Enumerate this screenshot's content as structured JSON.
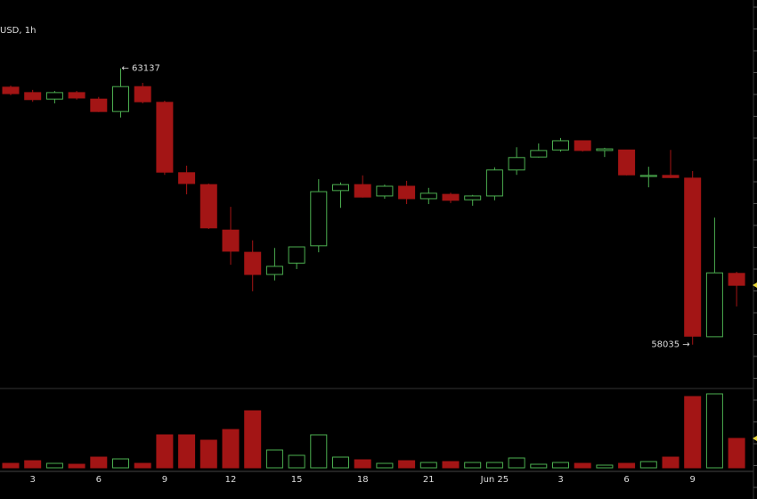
{
  "chart_data": {
    "type": "candlestick",
    "title": "USD, 1h",
    "categories": [
      null,
      "3",
      null,
      null,
      "6",
      null,
      null,
      "9",
      null,
      null,
      "12",
      null,
      null,
      "15",
      null,
      null,
      "18",
      null,
      null,
      "21",
      null,
      null,
      "Jun 25",
      null,
      null,
      "3",
      null,
      null,
      "6",
      null,
      null,
      "9",
      null,
      null
    ],
    "open": [
      62790,
      62690,
      62570,
      62690,
      62570,
      62340,
      62800,
      62510,
      61210,
      60990,
      60150,
      59740,
      59330,
      59540,
      59860,
      60880,
      60990,
      60780,
      60960,
      60730,
      60810,
      60710,
      60780,
      61260,
      61500,
      61630,
      61800,
      61620,
      61630,
      61140,
      61160,
      61110,
      58180,
      59350
    ],
    "high": [
      62820,
      62740,
      62720,
      62720,
      62610,
      63137,
      62870,
      62540,
      61340,
      61010,
      60580,
      59960,
      59820,
      59840,
      61090,
      61030,
      61160,
      60990,
      61060,
      60930,
      60840,
      60800,
      61310,
      61680,
      61750,
      61850,
      61800,
      61670,
      61630,
      61320,
      61630,
      61240,
      60380,
      59380
    ],
    "low": [
      62640,
      62520,
      62490,
      62560,
      62330,
      62230,
      62490,
      61170,
      60810,
      60170,
      59510,
      59020,
      59220,
      59430,
      59740,
      60560,
      60750,
      60730,
      60630,
      60630,
      60650,
      60600,
      60700,
      61170,
      61490,
      61600,
      61600,
      61500,
      61160,
      60940,
      61110,
      58035,
      58180,
      58740
    ],
    "close": [
      62670,
      62560,
      62690,
      62590,
      62340,
      62800,
      62520,
      61220,
      61010,
      60190,
      59760,
      59330,
      59480,
      59840,
      60860,
      60990,
      60760,
      60960,
      60730,
      60830,
      60700,
      60780,
      61260,
      61490,
      61620,
      61800,
      61620,
      61650,
      61170,
      61160,
      61120,
      58190,
      59360,
      59130
    ],
    "volume": [
      5,
      8,
      5,
      4,
      12,
      10,
      5,
      37,
      37,
      31,
      43,
      64,
      20,
      14,
      37,
      12,
      9,
      5,
      8,
      6,
      7,
      6,
      6,
      11,
      4,
      6,
      5,
      3,
      5,
      7,
      12,
      80,
      83,
      33
    ],
    "ylim": [
      57240,
      64400
    ],
    "volume_ylim": [
      0,
      89
    ],
    "up_color": "#4caf50",
    "down_color": "#a31515",
    "high_annotation": "← 63137",
    "low_annotation": "58035 →"
  }
}
